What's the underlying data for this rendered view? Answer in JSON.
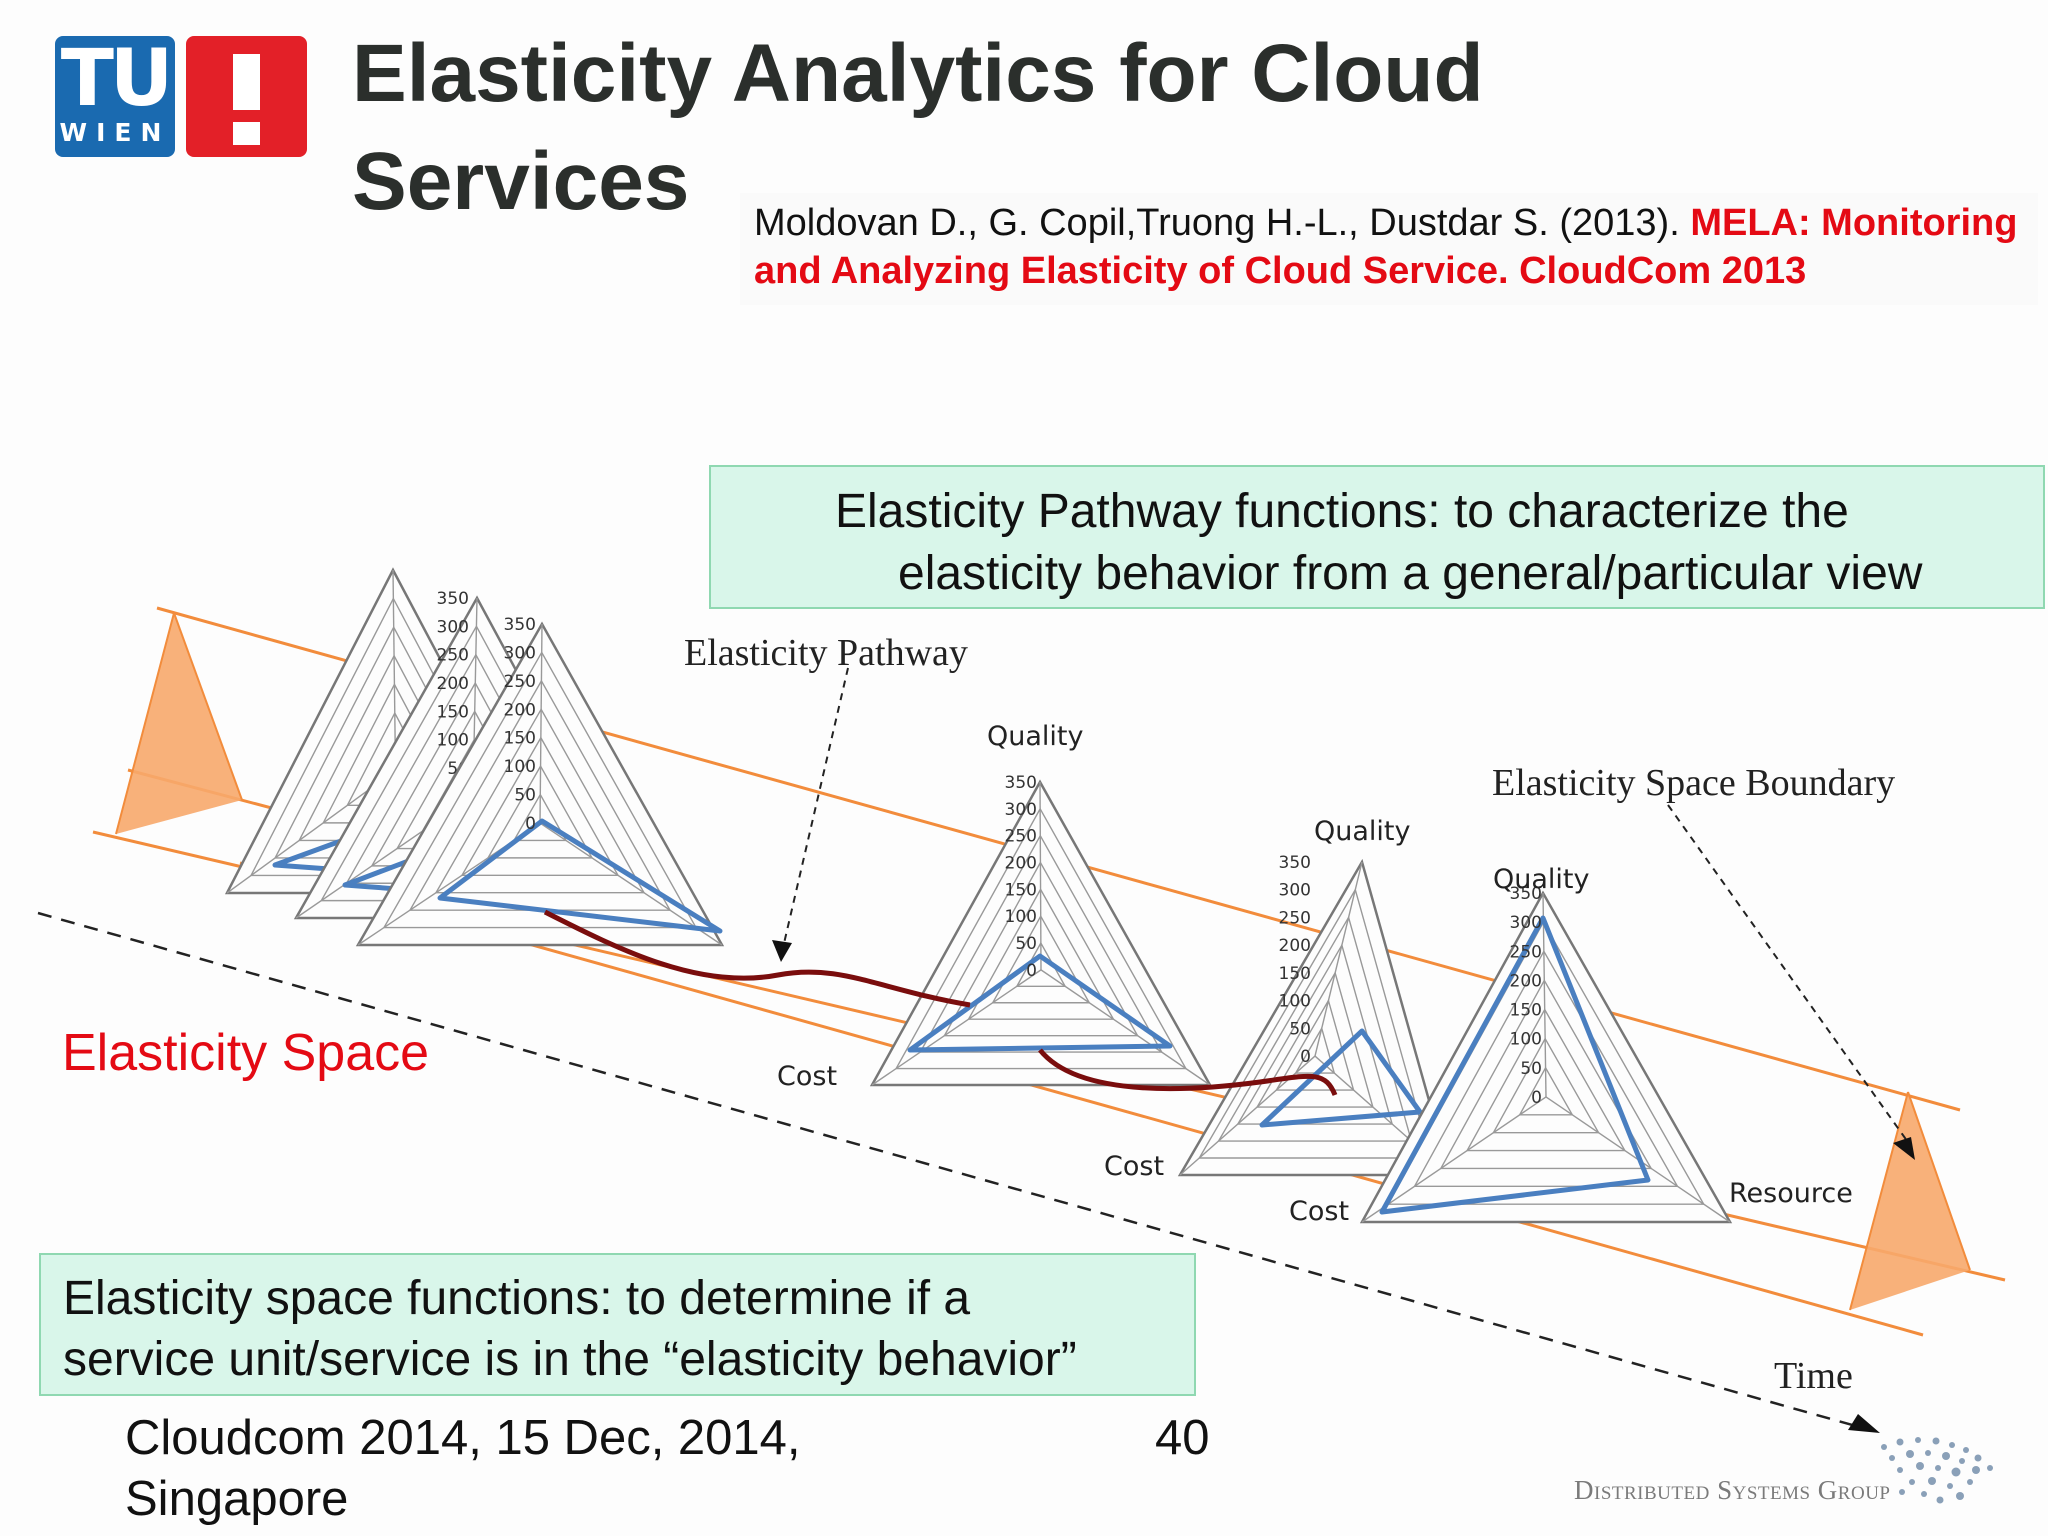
{
  "logo": {
    "tu_text": "TU",
    "wien_text": "WIEN",
    "brand_blue": "#1a6ab0",
    "brand_red": "#e32028"
  },
  "title": "Elasticity Analytics for Cloud Services",
  "citation": {
    "authors": "Moldovan D., G. Copil,Truong H.-L., Dustdar S. (2013). ",
    "paper": "MELA: Monitoring and Analyzing Elasticity of Cloud Service. CloudCom 2013"
  },
  "pathway_callout": {
    "line1": "Elasticity Pathway functions: to characterize the",
    "line2": "elasticity behavior from a general/particular view"
  },
  "space_callout": "Elasticity space functions:  to determine if a\nservice unit/service is in the “elasticity behavior”",
  "diagram": {
    "elasticity_space_label": "Elasticity Space",
    "elasticity_pathway_label": "Elasticity Pathway",
    "boundary_label": "Elasticity Space Boundary",
    "time_label": "Time",
    "quality_label": "Quality",
    "cost_label": "Cost",
    "resource_label": "Resource",
    "ticks": [
      "350",
      "300",
      "250",
      "200",
      "150",
      "100",
      "50",
      "0"
    ]
  },
  "footer": {
    "venue": "Cloudcom 2014, 15 Dec, 2014,\nSingapore",
    "page_number": "40",
    "group_label": "Distributed Systems Group"
  },
  "colors": {
    "highlight_red": "#e40a14",
    "callout_bg": "#d9f6ea",
    "boundary_orange": "#f28c3c",
    "radar_blue": "#4a7fc0",
    "pathway_darkred": "#7a0d0d"
  }
}
